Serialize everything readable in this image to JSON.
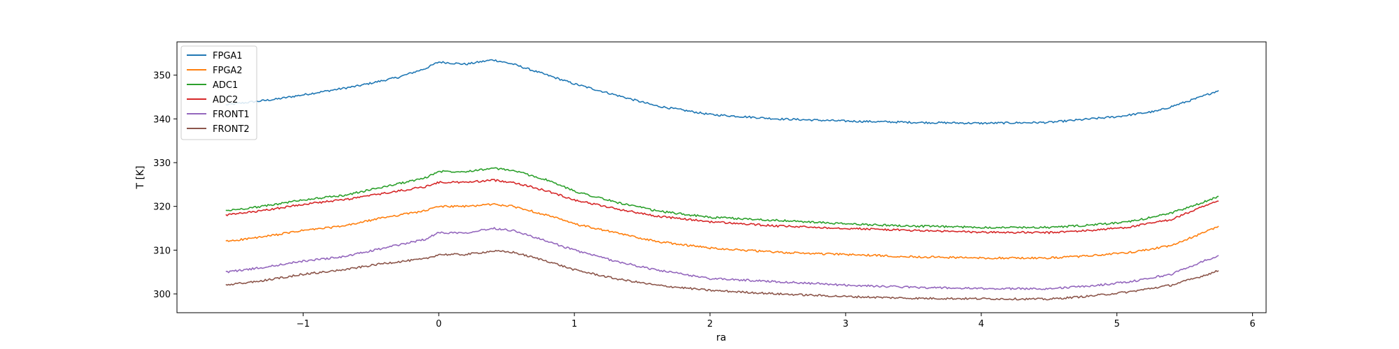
{
  "chart_data": {
    "type": "line",
    "title": "",
    "xlabel": "ra",
    "ylabel": "T [K]",
    "xlim": [
      -1.93,
      6.1
    ],
    "ylim": [
      295.7,
      357.6
    ],
    "xticks": [
      -1,
      0,
      1,
      2,
      3,
      4,
      5,
      6
    ],
    "xtick_labels": [
      "−1",
      "0",
      "1",
      "2",
      "3",
      "4",
      "5",
      "6"
    ],
    "yticks": [
      300,
      310,
      320,
      330,
      340,
      350
    ],
    "ytick_labels": [
      "300",
      "310",
      "320",
      "330",
      "340",
      "350"
    ],
    "grid": false,
    "legend_position": "top-left",
    "series": [
      {
        "name": "FPGA1",
        "color": "#1f77b4",
        "x": [
          -1.57,
          -1.2,
          -0.9,
          -0.6,
          -0.3,
          -0.1,
          0,
          0.2,
          0.4,
          0.55,
          0.8,
          1.0,
          1.3,
          1.6,
          2.0,
          2.5,
          3.0,
          3.5,
          4.0,
          4.5,
          5.0,
          5.3,
          5.6,
          5.75
        ],
        "y": [
          343.2,
          344.5,
          346,
          347.5,
          349.5,
          351.5,
          353,
          352.5,
          353.5,
          352.5,
          350,
          348,
          345.5,
          343,
          341,
          340,
          339.5,
          339.2,
          339,
          339.2,
          340.5,
          341.8,
          344.8,
          346.5
        ]
      },
      {
        "name": "FPGA2",
        "color": "#ff7f0e",
        "x": [
          -1.57,
          -1.3,
          -1.0,
          -0.7,
          -0.4,
          -0.1,
          0,
          0.2,
          0.4,
          0.55,
          0.8,
          1.0,
          1.3,
          1.6,
          2.0,
          2.5,
          3.0,
          3.5,
          4.0,
          4.5,
          4.8,
          5.1,
          5.4,
          5.6,
          5.75
        ],
        "y": [
          312,
          313,
          314.5,
          315.5,
          317.5,
          319,
          320,
          320,
          320.5,
          320,
          318,
          316,
          314,
          312,
          310.5,
          309.5,
          309,
          308.5,
          308.2,
          308.2,
          308.7,
          309.5,
          311,
          313.5,
          315.5
        ]
      },
      {
        "name": "ADC1",
        "color": "#2ca02c",
        "x": [
          -1.57,
          -1.3,
          -1.0,
          -0.7,
          -0.4,
          -0.1,
          0,
          0.2,
          0.4,
          0.55,
          0.8,
          1.0,
          1.3,
          1.6,
          2.0,
          2.5,
          3.0,
          3.5,
          4.0,
          4.5,
          4.8,
          5.1,
          5.4,
          5.6,
          5.75
        ],
        "y": [
          319,
          320,
          321.5,
          322.5,
          324.5,
          326.5,
          328,
          328,
          328.7,
          328.2,
          326,
          323.5,
          321,
          319,
          317.5,
          316.8,
          316,
          315.5,
          315.2,
          315.2,
          315.7,
          316.5,
          318.5,
          320.5,
          322.3
        ]
      },
      {
        "name": "ADC2",
        "color": "#d62728",
        "x": [
          -1.57,
          -1.3,
          -1.0,
          -0.7,
          -0.4,
          -0.1,
          0,
          0.2,
          0.4,
          0.55,
          0.8,
          1.0,
          1.3,
          1.6,
          2.0,
          2.5,
          3.0,
          3.5,
          4.0,
          4.5,
          4.8,
          5.1,
          5.4,
          5.6,
          5.75
        ],
        "y": [
          318,
          319,
          320.5,
          321.5,
          323,
          324.5,
          325.5,
          325.5,
          326,
          325.5,
          323.5,
          321.5,
          319.5,
          317.8,
          316.5,
          315.5,
          315,
          314.5,
          314.1,
          314,
          314.5,
          315.3,
          317,
          319.5,
          321.2
        ]
      },
      {
        "name": "FRONT1",
        "color": "#9467bd",
        "x": [
          -1.57,
          -1.3,
          -1.0,
          -0.7,
          -0.4,
          -0.1,
          0,
          0.2,
          0.4,
          0.55,
          0.8,
          1.0,
          1.3,
          1.6,
          2.0,
          2.5,
          3.0,
          3.5,
          4.0,
          4.5,
          4.8,
          5.1,
          5.4,
          5.6,
          5.75
        ],
        "y": [
          305,
          306,
          307.5,
          308.5,
          310.5,
          312.5,
          314,
          314,
          315,
          314.5,
          312,
          310,
          307.5,
          305.5,
          303.5,
          302.8,
          302,
          301.5,
          301.2,
          301.2,
          301.8,
          302.8,
          304.5,
          307,
          308.8
        ]
      },
      {
        "name": "FRONT2",
        "color": "#8c564b",
        "x": [
          -1.57,
          -1.3,
          -1.0,
          -0.7,
          -0.4,
          -0.1,
          0,
          0.2,
          0.4,
          0.55,
          0.8,
          1.0,
          1.3,
          1.6,
          2.0,
          2.5,
          3.0,
          3.5,
          4.0,
          4.5,
          4.8,
          5.1,
          5.4,
          5.6,
          5.75
        ],
        "y": [
          302,
          303,
          304.5,
          305.5,
          307,
          308,
          309,
          309,
          309.8,
          309.5,
          307.5,
          305.5,
          303.5,
          302,
          300.8,
          300,
          299.4,
          299,
          298.9,
          298.8,
          299.5,
          300.5,
          302,
          303.8,
          305.3
        ]
      }
    ]
  }
}
